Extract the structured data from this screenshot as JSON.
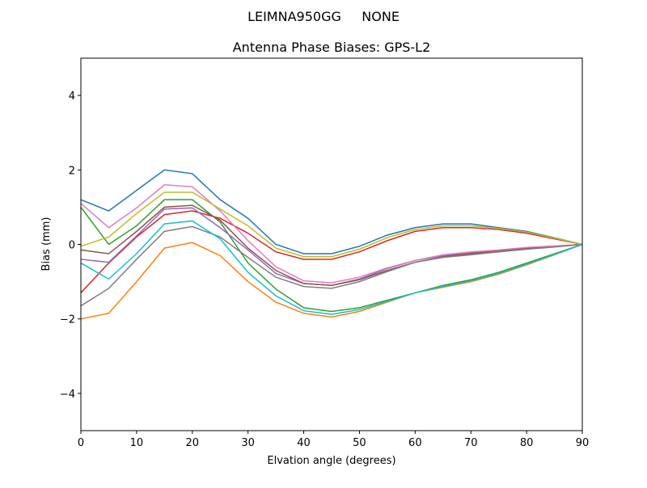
{
  "chart_data": {
    "type": "line",
    "suptitle": "LEIMNA950GG     NONE",
    "title": "Antenna Phase Biases: GPS-L2",
    "x_label": "Elvation angle (degrees)",
    "y_label": "Bias (mm)",
    "x": [
      0,
      5,
      10,
      15,
      20,
      25,
      30,
      35,
      40,
      45,
      50,
      55,
      60,
      65,
      70,
      75,
      80,
      85,
      90
    ],
    "xlim": [
      0,
      90
    ],
    "xticks": [
      0,
      10,
      20,
      30,
      40,
      50,
      60,
      70,
      80,
      90
    ],
    "ylim": [
      -5,
      5
    ],
    "yticks": [
      {
        "value": -4,
        "label": "−4"
      },
      {
        "value": -2,
        "label": "−2"
      },
      0,
      2,
      4
    ],
    "series": [
      {
        "color": "#1f77b4",
        "values": [
          1.2,
          0.9,
          1.45,
          2.0,
          1.9,
          1.2,
          0.7,
          0.0,
          -0.25,
          -0.25,
          -0.05,
          0.25,
          0.45,
          0.55,
          0.55,
          0.45,
          0.35,
          0.18,
          0
        ]
      },
      {
        "color": "#ff7f0e",
        "values": [
          -2.0,
          -1.85,
          -1.0,
          -0.1,
          0.05,
          -0.3,
          -1.0,
          -1.55,
          -1.85,
          -1.95,
          -1.8,
          -1.55,
          -1.3,
          -1.15,
          -1.0,
          -0.8,
          -0.55,
          -0.28,
          0
        ]
      },
      {
        "color": "#2ca02c",
        "values": [
          1.0,
          0.0,
          0.5,
          1.2,
          1.2,
          0.6,
          -0.5,
          -1.2,
          -1.7,
          -1.8,
          -1.7,
          -1.5,
          -1.3,
          -1.1,
          -0.95,
          -0.75,
          -0.5,
          -0.25,
          0
        ]
      },
      {
        "color": "#d62728",
        "values": [
          -1.3,
          -0.5,
          0.2,
          0.8,
          0.9,
          0.7,
          0.3,
          -0.2,
          -0.4,
          -0.4,
          -0.2,
          0.1,
          0.35,
          0.45,
          0.45,
          0.4,
          0.3,
          0.15,
          0
        ]
      },
      {
        "color": "#9467bd",
        "values": [
          -0.4,
          -0.48,
          0.23,
          0.95,
          0.98,
          0.45,
          -0.15,
          -0.78,
          -1.05,
          -1.1,
          -0.93,
          -0.65,
          -0.43,
          -0.3,
          -0.23,
          -0.18,
          -0.1,
          -0.05,
          0
        ]
      },
      {
        "color": "#8c564b",
        "values": [
          -0.15,
          -0.25,
          0.35,
          1.0,
          1.05,
          0.65,
          -0.1,
          -0.7,
          -1.05,
          -1.1,
          -0.95,
          -0.7,
          -0.48,
          -0.33,
          -0.25,
          -0.18,
          -0.1,
          -0.05,
          0
        ]
      },
      {
        "color": "#e377c2",
        "values": [
          1.1,
          0.45,
          0.98,
          1.6,
          1.55,
          0.9,
          0.1,
          -0.6,
          -0.98,
          -1.03,
          -0.88,
          -0.63,
          -0.43,
          -0.28,
          -0.2,
          -0.15,
          -0.08,
          -0.04,
          0
        ]
      },
      {
        "color": "#7f7f7f",
        "values": [
          -1.65,
          -1.18,
          -0.4,
          0.35,
          0.48,
          0.2,
          -0.35,
          -0.88,
          -1.13,
          -1.18,
          -1.0,
          -0.73,
          -0.48,
          -0.35,
          -0.28,
          -0.2,
          -0.13,
          -0.07,
          0
        ]
      },
      {
        "color": "#bcbd22",
        "values": [
          -0.05,
          0.2,
          0.83,
          1.4,
          1.4,
          0.95,
          0.5,
          -0.1,
          -0.33,
          -0.33,
          -0.13,
          0.18,
          0.4,
          0.5,
          0.5,
          0.43,
          0.33,
          0.17,
          0
        ]
      },
      {
        "color": "#17becf",
        "values": [
          -0.5,
          -0.93,
          -0.25,
          0.55,
          0.63,
          0.15,
          -0.75,
          -1.38,
          -1.78,
          -1.88,
          -1.75,
          -1.53,
          -1.3,
          -1.13,
          -0.98,
          -0.78,
          -0.53,
          -0.27,
          0
        ]
      }
    ]
  }
}
